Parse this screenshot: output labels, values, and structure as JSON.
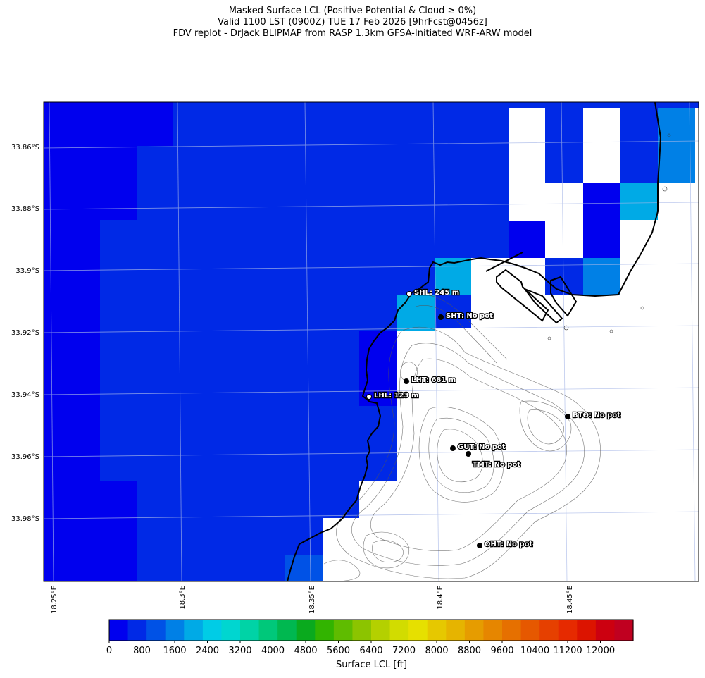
{
  "title": {
    "line1": "Masked Surface LCL (Positive Potential & Cloud ≥ 0%)",
    "line2": "Valid 1100 LST (0900Z) TUE 17 Feb 2026 [9hrFcst@0456z]",
    "line3": "FDV replot - DrJack BLIPMAP from RASP 1.3km GFSA-Initiated WRF-ARW model"
  },
  "map": {
    "lat_labels": [
      "33.86°S",
      "33.88°S",
      "33.9°S",
      "33.92°S",
      "33.94°S",
      "33.96°S",
      "33.98°S"
    ],
    "lon_labels": [
      "18.25°E",
      "18.3°E",
      "18.35°E",
      "18.4°E",
      "18.45°E"
    ],
    "stations": [
      {
        "code": "SHL",
        "label": "SHL: 245 m",
        "marker": "white"
      },
      {
        "code": "SHT",
        "label": "SHT: No pot",
        "marker": "black"
      },
      {
        "code": "LHT",
        "label": "LHT: 681 m",
        "marker": "black"
      },
      {
        "code": "LHL",
        "label": "LHL: 123 m",
        "marker": "white"
      },
      {
        "code": "BTO",
        "label": "BTO: No pot",
        "marker": "black"
      },
      {
        "code": "GUT",
        "label": "GUT: No pot",
        "marker": "black"
      },
      {
        "code": "TMT",
        "label": "TMT: No pot",
        "marker": "black"
      },
      {
        "code": "OHT",
        "label": "OHT: No pot",
        "marker": "black"
      }
    ]
  },
  "colorbar": {
    "label": "Surface LCL [ft]",
    "min": 0,
    "max": 12800,
    "step": 400,
    "tick_labels": [
      "0",
      "800",
      "1600",
      "2400",
      "3200",
      "4000",
      "4800",
      "5600",
      "6400",
      "7200",
      "8000",
      "8800",
      "9600",
      "10400",
      "11200",
      "12000"
    ],
    "colors": [
      "#0000ee",
      "#0029e6",
      "#0052e6",
      "#0080e6",
      "#00aae6",
      "#00cce6",
      "#00d6d0",
      "#00d3a6",
      "#00c87a",
      "#00b850",
      "#0aaa1e",
      "#32b400",
      "#5fbc00",
      "#8cc400",
      "#b4d000",
      "#d2dc00",
      "#e6e000",
      "#e6c800",
      "#e6b400",
      "#e69c00",
      "#e68600",
      "#e67000",
      "#e65800",
      "#e64000",
      "#e62a00",
      "#dc1400",
      "#cc0010",
      "#c00020"
    ]
  }
}
